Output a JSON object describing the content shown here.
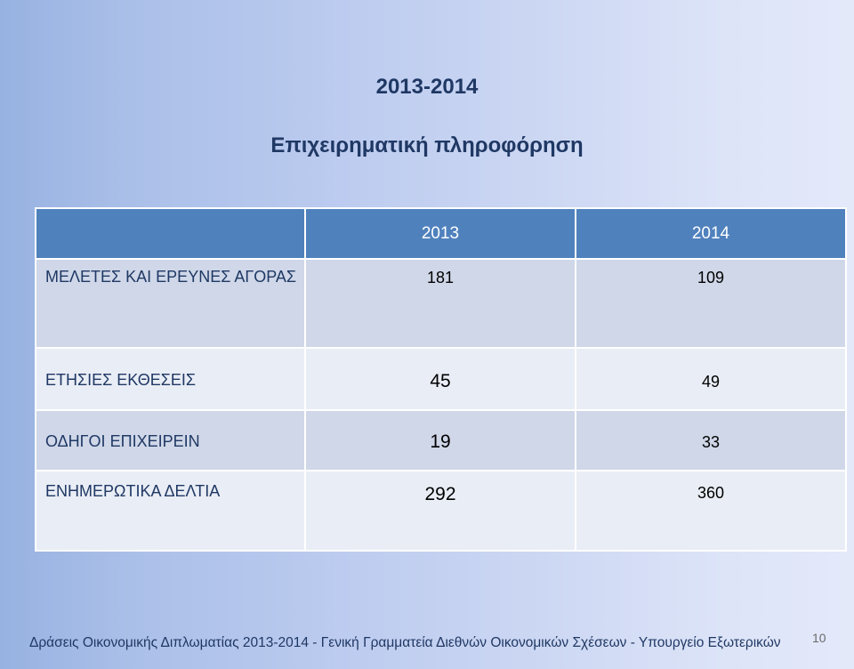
{
  "slide": {
    "title": "2013-2014",
    "subtitle": "Επιχειρηματική πληροφόρηση"
  },
  "table": {
    "header": [
      "",
      "2013",
      "2014"
    ],
    "rows": [
      {
        "label": "ΜΕΛΕΤΕΣ ΚΑΙ ΕΡΕΥΝΕΣ ΑΓΟΡΑΣ",
        "y2013": "181",
        "y2014": "109"
      },
      {
        "label": "ΕΤΗΣΙΕΣ ΕΚΘΕΣΕΙΣ",
        "y2013": "45",
        "y2014": "49"
      },
      {
        "label": "ΟΔΗΓΟΙ ΕΠΙΧΕΙΡΕΙΝ",
        "y2013": "19",
        "y2014": "33"
      },
      {
        "label": "ΕΝΗΜΕΡΩΤΙΚΑ ΔΕΛΤΙΑ",
        "y2013": "292",
        "y2014": "360"
      }
    ]
  },
  "footer": {
    "text": "Δράσεις Οικονομικής Διπλωματίας 2013-2014 - Γενική Γραμματεία Διεθνών Οικονομικών Σχέσεων  - Υπουργείο Εξωτερικών",
    "page_number": "10"
  }
}
